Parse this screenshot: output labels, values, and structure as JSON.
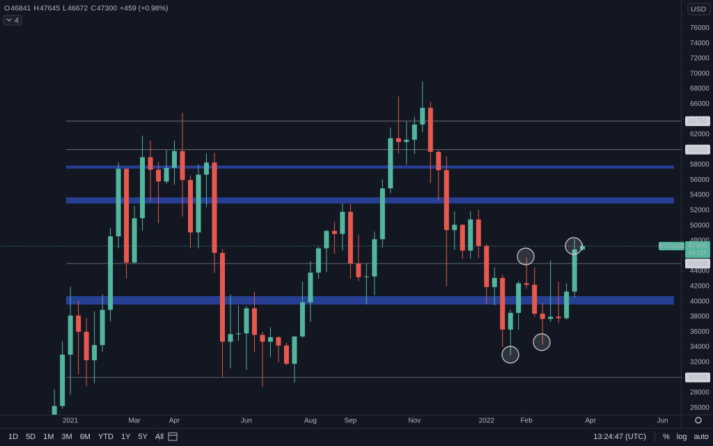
{
  "chart_data": {
    "type": "candlestick",
    "header": [
      {
        "key": "O",
        "value": "46841"
      },
      {
        "key": "H",
        "value": "47645"
      },
      {
        "key": "L",
        "value": "46672"
      },
      {
        "key": "C",
        "value": "47300"
      }
    ],
    "change": "+459 (+0.98%)",
    "indicator_count": "4",
    "currency": "USD",
    "up_color": "#53b59e",
    "down_color": "#e8584f",
    "candles": [
      [
        23480,
        28420,
        22350,
        26240
      ],
      [
        26240,
        34780,
        25880,
        33000
      ],
      [
        33000,
        41950,
        27730,
        38150
      ],
      [
        38150,
        40100,
        30420,
        36010
      ],
      [
        36010,
        37850,
        28850,
        32260
      ],
      [
        32260,
        38700,
        29240,
        34260
      ],
      [
        34260,
        40955,
        33400,
        38900
      ],
      [
        38900,
        49700,
        37400,
        48580
      ],
      [
        48580,
        58350,
        47000,
        57480
      ],
      [
        57480,
        57530,
        43000,
        45130
      ],
      [
        45130,
        52640,
        45000,
        50970
      ],
      [
        50970,
        61840,
        49300,
        59000
      ],
      [
        59000,
        61200,
        53200,
        57350
      ],
      [
        57350,
        58400,
        50300,
        55800
      ],
      [
        55800,
        60000,
        55500,
        57600
      ],
      [
        57600,
        61200,
        55400,
        59800
      ],
      [
        59800,
        64850,
        51200,
        56000
      ],
      [
        56000,
        56600,
        47000,
        49100
      ],
      [
        49100,
        58000,
        47000,
        56700
      ],
      [
        56700,
        59500,
        52400,
        58300
      ],
      [
        58300,
        59600,
        43800,
        46400
      ],
      [
        46400,
        46900,
        30000,
        34700
      ],
      [
        34700,
        40900,
        31200,
        35700
      ],
      [
        35700,
        39500,
        34800,
        35800
      ],
      [
        35800,
        39400,
        31000,
        39100
      ],
      [
        39100,
        41300,
        33300,
        35600
      ],
      [
        35600,
        36000,
        28800,
        34700
      ],
      [
        34700,
        36600,
        32700,
        35300
      ],
      [
        35300,
        35400,
        32000,
        34200
      ],
      [
        34200,
        34600,
        31600,
        31800
      ],
      [
        31800,
        35400,
        29300,
        35400
      ],
      [
        35400,
        42600,
        35200,
        39900
      ],
      [
        39900,
        45300,
        37300,
        43800
      ],
      [
        43800,
        47200,
        43000,
        47000
      ],
      [
        47000,
        49400,
        43900,
        49300
      ],
      [
        49300,
        50500,
        46300,
        48900
      ],
      [
        48900,
        52900,
        46700,
        51800
      ],
      [
        51800,
        52800,
        43000,
        45000
      ],
      [
        45000,
        48800,
        42700,
        43200
      ],
      [
        43200,
        45000,
        39600,
        43300
      ],
      [
        43300,
        49200,
        40800,
        48200
      ],
      [
        48200,
        56100,
        47100,
        54900
      ],
      [
        54900,
        62900,
        54300,
        61500
      ],
      [
        61500,
        67000,
        59500,
        61000
      ],
      [
        61000,
        63700,
        58000,
        61300
      ],
      [
        61300,
        64300,
        59400,
        63300
      ],
      [
        63300,
        69000,
        62300,
        65500
      ],
      [
        65500,
        66300,
        55600,
        59700
      ],
      [
        59700,
        59900,
        53300,
        57300
      ],
      [
        57300,
        59100,
        42000,
        49400
      ],
      [
        49400,
        51900,
        46800,
        50100
      ],
      [
        50100,
        50200,
        45600,
        46700
      ],
      [
        46700,
        51900,
        45600,
        50800
      ],
      [
        50800,
        52100,
        45700,
        47300
      ],
      [
        47300,
        47600,
        39600,
        41900
      ],
      [
        41900,
        44500,
        39500,
        43100
      ],
      [
        43100,
        43500,
        34000,
        36300
      ],
      [
        36300,
        38900,
        32950,
        38500
      ],
      [
        38500,
        42700,
        36300,
        42400
      ],
      [
        42400,
        45800,
        41700,
        42200
      ],
      [
        42200,
        44500,
        38000,
        38400
      ],
      [
        38400,
        39800,
        34300,
        37700
      ],
      [
        37700,
        45400,
        37300,
        38000
      ],
      [
        38000,
        42600,
        37200,
        37800
      ],
      [
        37800,
        42400,
        37600,
        41300
      ],
      [
        41300,
        48200,
        40500,
        46841
      ],
      [
        46841,
        47645,
        46672,
        47300
      ]
    ],
    "xlim": [
      -6.8,
      78.3
    ],
    "xticks": [
      {
        "value": 2,
        "label": "2021"
      },
      {
        "value": 10,
        "label": "Mar"
      },
      {
        "value": 15,
        "label": "Apr"
      },
      {
        "value": 24,
        "label": "Jun"
      },
      {
        "value": 32,
        "label": "Aug"
      },
      {
        "value": 37,
        "label": "Sep"
      },
      {
        "value": 45,
        "label": "Nov"
      },
      {
        "value": 54,
        "label": "2022"
      },
      {
        "value": 59,
        "label": "Feb"
      },
      {
        "value": 67,
        "label": "Apr"
      },
      {
        "value": 76,
        "label": "Jun"
      }
    ],
    "ylim": [
      25100,
      79700
    ],
    "yticks": [
      26000,
      28000,
      30000,
      32000,
      34000,
      36000,
      38000,
      40000,
      42000,
      44000,
      46000,
      48000,
      50000,
      52000,
      54000,
      56000,
      58000,
      60000,
      62000,
      64000,
      66000,
      68000,
      70000,
      72000,
      74000,
      76000
    ],
    "levels": [
      63750,
      60000,
      45000,
      30000
    ],
    "zones": [
      [
        57500,
        57900
      ],
      [
        52900,
        53700
      ],
      [
        39600,
        40700
      ]
    ],
    "zone_color": "#2a44a0",
    "symbol": "BTCUSD",
    "last_price": 47300,
    "countdown": "6d 11h",
    "timeframes": [
      "1D",
      "5D",
      "1M",
      "3M",
      "6M",
      "YTD",
      "1Y",
      "5Y",
      "All"
    ],
    "clock": "13:24:47 (UTC)",
    "options": [
      "%",
      "log",
      "auto"
    ]
  }
}
